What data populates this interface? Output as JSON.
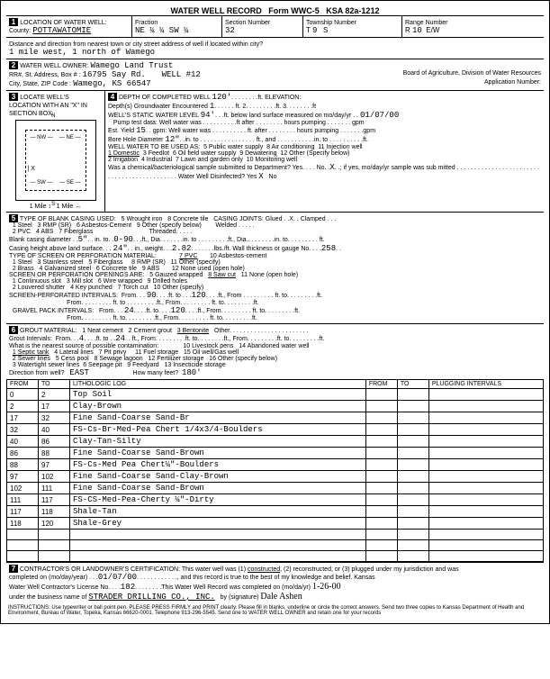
{
  "form": {
    "title": "WATER WELL RECORD",
    "form_no": "Form WWC-5",
    "ksa": "KSA 82a-1212"
  },
  "sec1": {
    "county": "POTTAWATOMIE",
    "fraction": "NE ¼ ¼ SW ¼",
    "section_no": "32",
    "township": "9",
    "township_dir": "S",
    "range": "10",
    "range_dir": "E/W",
    "distance": "1 mile west, 1 north of Wamego"
  },
  "sec2": {
    "owner": "Wamego Land Trust",
    "addr": "16795 Say Rd.",
    "well_no": "WELL #12",
    "city": "Wamego, KS  66547",
    "board": "Board of Agriculture, Division of Water Resources",
    "app": "Application Number:"
  },
  "sec4": {
    "depth": "120'",
    "depth_gw": "1",
    "static": "94'",
    "static_date": "01/07/00",
    "est_yield": "15",
    "bore_diam": "12\"",
    "use_sel": "1 Domestic",
    "uses": [
      "3 Feedlot",
      "5 Public water supply",
      "8 Air conditioning",
      "11 Injection well",
      "2 Irrigation",
      "4 Industrial",
      "6 Oil field water supply",
      "9 Dewatering",
      "12 Other (Specify below)",
      "7 Lawn and garden only",
      "10 Monitoring well"
    ],
    "chem_no": "X",
    "disinf_yes": "X"
  },
  "sec5": {
    "casing_types": [
      "1 Steel",
      "3 RMP (SR)",
      "5 Wrought iron",
      "8 Concrete tile",
      "2 PVC",
      "4 ABS",
      "6 Asbestos-Cement",
      "9 Other (specify below)",
      "7 Fiberglass"
    ],
    "joints": "Glued . .X. . Clamped",
    "joints2": "Welded",
    "joints3": "Threaded",
    "blank_diam": "5\"",
    "blank_to": "0-90",
    "casing_height": "24\"",
    "weight": "2.82",
    "gauge": "258",
    "screen_mat": [
      "1 Steel",
      "3 Stainless steel",
      "5 Fiberglass",
      "2 Brass",
      "4 Galvanized steel",
      "6 Concrete tile"
    ],
    "screen_mat2": [
      "7 PVC",
      "8 RMP (SR)",
      "9 ABS",
      "10 Asbestos-cement",
      "11 Other (specify)",
      "12 None used (open hole)"
    ],
    "openings": [
      "1 Continuous slot",
      "3 Mill slot",
      "5 Gauzed wrapped",
      "8 Saw cut",
      "11 None (open hole)",
      "2 Louvered shutter",
      "4 Key punched",
      "6 Wire wrapped",
      "9 Drilled holes",
      "7 Torch cut",
      "10 Other (specify)"
    ],
    "screen_from": "90",
    "screen_to": "120",
    "gravel_from": "24",
    "gravel_to": "120"
  },
  "sec6": {
    "grout": [
      "1 Neat cement",
      "2 Cement grout",
      "3 Bentonite"
    ],
    "grout_from": "4",
    "grout_to": "24",
    "contam": [
      "1 Septic tank",
      "4 Lateral lines",
      "7 Pit privy",
      "10 Livestock pens",
      "14 Abandoned water well",
      "2 Sewer lines",
      "5 Cess pool",
      "8 Sewage lagoon",
      "11 Fuel storage",
      "15 Oil well/Gas well",
      "3 Watertight sewer lines",
      "6 Seepage pit",
      "9 Feedyard",
      "12 Fertilizer storage",
      "16 Other (specify below)",
      "13 Insecticide storage"
    ],
    "direction": "EAST",
    "feet": "180'"
  },
  "log": {
    "headers": [
      "FROM",
      "TO",
      "LITHOLOGIC LOG",
      "FROM",
      "TO",
      "PLUGGING INTERVALS"
    ],
    "rows": [
      [
        "0",
        "2",
        "Top Soil",
        "",
        "",
        ""
      ],
      [
        "2",
        "17",
        "Clay-Brown",
        "",
        "",
        ""
      ],
      [
        "17",
        "32",
        "Fine Sand-Coarse Sand-Br",
        "",
        "",
        ""
      ],
      [
        "32",
        "40",
        "FS-Cs-Br-Med-Pea Chert 1/4x3/4-Boulders",
        "",
        "",
        ""
      ],
      [
        "40",
        "86",
        "Clay-Tan-Silty",
        "",
        "",
        ""
      ],
      [
        "86",
        "88",
        "Fine Sand-Coarse Sand-Brown",
        "",
        "",
        ""
      ],
      [
        "88",
        "97",
        "FS-Cs-Med Pea Chert¼\"-Boulders",
        "",
        "",
        ""
      ],
      [
        "97",
        "102",
        "Fine Sand-Coarse Sand-Clay-Brown",
        "",
        "",
        ""
      ],
      [
        "102",
        "111",
        "Fine Sand-Coarse Sand-Brown",
        "",
        "",
        ""
      ],
      [
        "111",
        "117",
        "FS-CS-Med-Pea-Cherty ¼\"-Dirty",
        "",
        "",
        ""
      ],
      [
        "117",
        "118",
        "Shale-Tan",
        "",
        "",
        ""
      ],
      [
        "118",
        "120",
        "Shale-Grey",
        "",
        "",
        ""
      ]
    ]
  },
  "sec7": {
    "date": "01/07/00",
    "license": "182",
    "contractor": "STRADER DRILLING CO., INC.",
    "sig_date": "1-26-00"
  },
  "instructions": "INSTRUCTIONS: Use typewriter or ball point pen. PLEASE PRESS FIRMLY and PRINT clearly. Please fill in blanks, underline or circle the correct answers. Send two three copies to Kansas Department of Health and Environment, Bureau of Water, Topeka, Kansas 66620-0001. Telephone 913-296-5545. Send one to WATER WELL OWNER and retain one for your records"
}
